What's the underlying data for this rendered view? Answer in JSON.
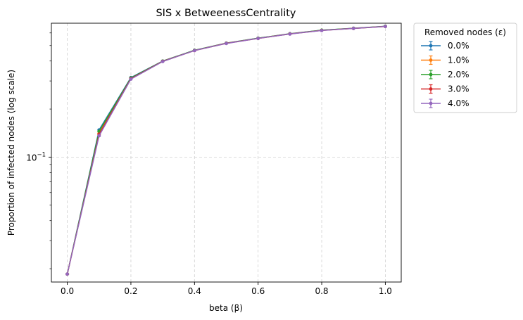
{
  "chart_data": {
    "type": "line",
    "title": "SIS x BetweenessCentrality",
    "xlabel": "beta (β)",
    "ylabel": "Proportion of infected nodes (log scale)",
    "x": [
      0.0,
      0.1,
      0.2,
      0.3,
      0.4,
      0.5,
      0.6,
      0.7,
      0.8,
      0.9,
      1.0
    ],
    "xlim": [
      -0.05,
      1.05
    ],
    "ylim": [
      0.0165,
      0.69
    ],
    "yscale": "log",
    "x_ticks": [
      "0.0",
      "0.2",
      "0.4",
      "0.6",
      "0.8",
      "1.0"
    ],
    "x_tick_values": [
      0.0,
      0.2,
      0.4,
      0.6,
      0.8,
      1.0
    ],
    "y_major_tick": {
      "value": 0.1,
      "label_base": "10",
      "label_exp": "−1"
    },
    "grid": true,
    "legend": {
      "title": "Removed nodes (ε)",
      "placement": "outside-top-right"
    },
    "series": [
      {
        "name": "0.0%",
        "color": "#1f77b4",
        "values": [
          0.0185,
          0.148,
          0.315,
          0.4,
          0.467,
          0.518,
          0.556,
          0.593,
          0.624,
          0.642,
          0.66
        ]
      },
      {
        "name": "1.0%",
        "color": "#ff7f0e",
        "values": [
          0.0185,
          0.141,
          0.312,
          0.399,
          0.466,
          0.517,
          0.555,
          0.592,
          0.623,
          0.641,
          0.659
        ]
      },
      {
        "name": "2.0%",
        "color": "#2ca02c",
        "values": [
          0.0185,
          0.145,
          0.313,
          0.399,
          0.467,
          0.517,
          0.556,
          0.592,
          0.624,
          0.641,
          0.66
        ]
      },
      {
        "name": "3.0%",
        "color": "#d62728",
        "values": [
          0.0185,
          0.139,
          0.31,
          0.398,
          0.465,
          0.516,
          0.554,
          0.591,
          0.622,
          0.64,
          0.658
        ]
      },
      {
        "name": "4.0%",
        "color": "#9467bd",
        "values": [
          0.0185,
          0.136,
          0.308,
          0.397,
          0.465,
          0.515,
          0.554,
          0.59,
          0.621,
          0.64,
          0.658
        ]
      }
    ]
  }
}
